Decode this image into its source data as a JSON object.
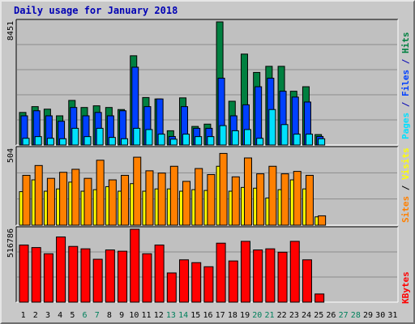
{
  "title": "Daily usage for January 2018",
  "colors": {
    "hits": "#008040",
    "files": "#0040ff",
    "pages": "#00e0ff",
    "visits": "#ffff00",
    "sites": "#ff8000",
    "kbytes": "#ff0000",
    "weekend_label": "#00805c",
    "panel_bg": "#c0c0c0"
  },
  "chart_data": [
    {
      "type": "bar",
      "categories": [
        "1",
        "2",
        "3",
        "4",
        "5",
        "6",
        "7",
        "8",
        "9",
        "10",
        "11",
        "12",
        "13",
        "14",
        "15",
        "16",
        "17",
        "18",
        "19",
        "20",
        "21",
        "22",
        "23",
        "24",
        "25",
        "26",
        "27",
        "28",
        "29",
        "30",
        "31"
      ],
      "weekend_days": [
        "6",
        "7",
        "13",
        "14",
        "20",
        "21",
        "27",
        "28"
      ],
      "ylabel_max": "8451",
      "ylim": [
        0,
        8451
      ],
      "grid": true,
      "right_labels": [
        "Pages",
        "Files",
        "Hits"
      ],
      "series": [
        {
          "name": "Hits",
          "color": "#008040",
          "values": [
            2234,
            2634,
            2460,
            2003,
            3060,
            2575,
            2690,
            2575,
            2434,
            6125,
            3258,
            3160,
            978,
            3235,
            1274,
            1432,
            8451,
            3003,
            6240,
            4980,
            5400,
            5400,
            3690,
            4000,
            716,
            0,
            0,
            0,
            0,
            0,
            0
          ]
        },
        {
          "name": "Files",
          "color": "#0040ff",
          "values": [
            2003,
            2350,
            2003,
            1630,
            2575,
            2003,
            2234,
            2003,
            2350,
            5340,
            2634,
            3160,
            585,
            2634,
            1146,
            1146,
            4585,
            2003,
            2760,
            4000,
            4585,
            3690,
            3290,
            2950,
            585,
            0,
            0,
            0,
            0,
            0,
            0
          ]
        },
        {
          "name": "Pages",
          "color": "#00e0ff",
          "values": [
            460,
            575,
            460,
            430,
            1146,
            575,
            1146,
            520,
            430,
            1146,
            1060,
            745,
            400,
            745,
            575,
            575,
            1330,
            978,
            1060,
            460,
            2434,
            1402,
            745,
            745,
            430,
            0,
            0,
            0,
            0,
            0,
            0
          ]
        }
      ]
    },
    {
      "type": "bar",
      "categories": [
        "1",
        "2",
        "3",
        "4",
        "5",
        "6",
        "7",
        "8",
        "9",
        "10",
        "11",
        "12",
        "13",
        "14",
        "15",
        "16",
        "17",
        "18",
        "19",
        "20",
        "21",
        "22",
        "23",
        "24",
        "25",
        "26",
        "27",
        "28",
        "29",
        "30",
        "31"
      ],
      "ylabel_max": "504",
      "ylim": [
        0,
        504
      ],
      "grid": true,
      "right_labels": [
        "Sites",
        "/",
        "Visits"
      ],
      "series": [
        {
          "name": "Visits",
          "color": "#ffff00",
          "values": [
            222,
            300,
            225,
            240,
            285,
            225,
            235,
            255,
            225,
            275,
            225,
            240,
            240,
            225,
            235,
            230,
            390,
            225,
            250,
            245,
            180,
            235,
            300,
            240,
            55,
            0,
            0,
            0,
            0,
            0,
            0
          ]
        },
        {
          "name": "Sites",
          "color": "#ff8000",
          "values": [
            330,
            395,
            310,
            350,
            370,
            310,
            430,
            300,
            330,
            450,
            360,
            345,
            390,
            290,
            375,
            335,
            475,
            320,
            445,
            340,
            390,
            340,
            356,
            330,
            62,
            0,
            0,
            0,
            0,
            0,
            0
          ]
        }
      ]
    },
    {
      "type": "bar",
      "categories": [
        "1",
        "2",
        "3",
        "4",
        "5",
        "6",
        "7",
        "8",
        "9",
        "10",
        "11",
        "12",
        "13",
        "14",
        "15",
        "16",
        "17",
        "18",
        "19",
        "20",
        "21",
        "22",
        "23",
        "24",
        "25",
        "26",
        "27",
        "28",
        "29",
        "30",
        "31"
      ],
      "ylabel_max": "516786",
      "ylim": [
        0,
        516786
      ],
      "grid": true,
      "right_labels": [
        "KBytes"
      ],
      "series": [
        {
          "name": "KBytes",
          "color": "#ff0000",
          "values": [
            405000,
            387000,
            343000,
            462000,
            395000,
            378000,
            304000,
            370000,
            361000,
            516786,
            343000,
            405000,
            207000,
            300000,
            280000,
            251000,
            418000,
            292000,
            431000,
            370000,
            378000,
            354000,
            431000,
            300000,
            58000,
            0,
            0,
            0,
            0,
            0,
            0
          ]
        }
      ]
    }
  ]
}
